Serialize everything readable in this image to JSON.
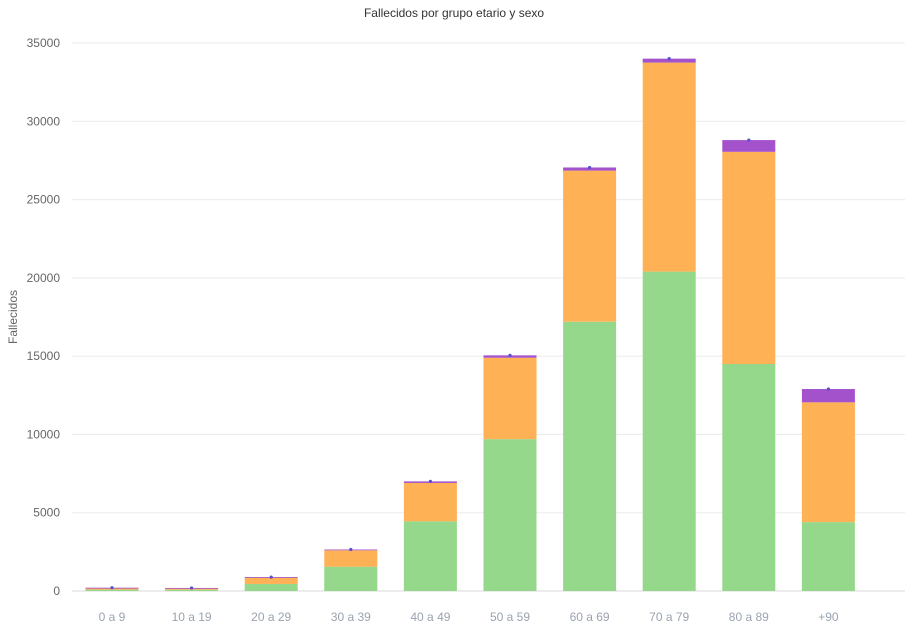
{
  "chart_data": {
    "type": "bar",
    "stacked": true,
    "title": "Fallecidos por grupo etario y sexo",
    "xlabel": "",
    "ylabel": "Fallecidos",
    "ylim": [
      0,
      35000
    ],
    "yticks": [
      0,
      5000,
      10000,
      15000,
      20000,
      25000,
      30000,
      35000
    ],
    "grid": true,
    "legend": "none",
    "categories": [
      "0 a 9",
      "10 a 19",
      "20 a 29",
      "30 a 39",
      "40 a 49",
      "50 a 59",
      "60 a 69",
      "70 a 79",
      "80 a 89",
      "+90"
    ],
    "series": [
      {
        "color": "#95d88b",
        "values": [
          90,
          85,
          450,
          1550,
          4450,
          9700,
          17200,
          20400,
          14500,
          4400
        ]
      },
      {
        "color": "#ffb156",
        "values": [
          110,
          100,
          420,
          1050,
          2450,
          5200,
          9650,
          13350,
          13550,
          7650
        ]
      },
      {
        "color": "#a352cc",
        "values": [
          10,
          10,
          20,
          50,
          100,
          150,
          200,
          250,
          750,
          850
        ]
      }
    ]
  }
}
